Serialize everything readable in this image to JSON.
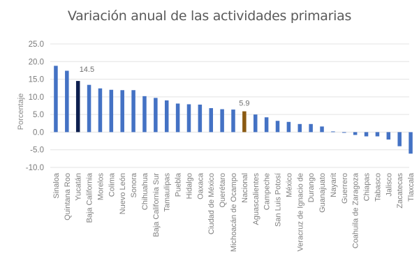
{
  "chart_data": {
    "type": "bar",
    "title": "Variación anual de las actividades primarias",
    "xlabel": "",
    "ylabel": "Porcentaje",
    "ylim": [
      -10.0,
      25.0
    ],
    "yticks": [
      "25.0",
      "20.0",
      "15.0",
      "10.0",
      "5.0",
      "0.0",
      "-5.0",
      "-10.0"
    ],
    "ytick_values": [
      25,
      20,
      15,
      10,
      5,
      0,
      -5,
      -10
    ],
    "grid": true,
    "categories": [
      "Sinaloa",
      "Quintana Roo",
      "Yucatán",
      "Baja California",
      "Morelos",
      "Colima",
      "Nuevo León",
      "Sonora",
      "Chihuahua",
      "Baja California Sur",
      "Tamaulipas",
      "Puebla",
      "Hidalgo",
      "Oaxaca",
      "Ciudad de México",
      "Querétaro",
      "Michoacán de Ocampo",
      "Nacional",
      "Aguascalientes",
      "Campeche",
      "San Luis Potosí",
      "México",
      "Veracruz de Ignacio de",
      "Durango",
      "Guanajuato",
      "Nayarit",
      "Guerrero",
      "Coahuila de Zaragoza",
      "Chiapas",
      "Tabasco",
      "Jalisco",
      "Zacatecas",
      "Tlaxcala"
    ],
    "values": [
      18.8,
      17.4,
      14.5,
      13.4,
      12.4,
      12.0,
      11.9,
      11.9,
      10.2,
      9.7,
      9.0,
      8.1,
      7.9,
      7.8,
      6.8,
      6.5,
      6.4,
      5.9,
      5.0,
      4.2,
      3.2,
      2.9,
      2.3,
      2.3,
      1.6,
      0.2,
      -0.2,
      -0.8,
      -1.2,
      -1.2,
      -2.1,
      -4.0,
      -6.1
    ],
    "data_labels": [
      {
        "category": "Yucatán",
        "text": "14.5"
      },
      {
        "category": "Nacional",
        "text": "5.9"
      }
    ],
    "colors": {
      "default": "#4472c4",
      "highlight_yucatan": "#0d1f4f",
      "highlight_nacional": "#8a5a12",
      "grid": "#e3e3e3"
    },
    "legend": "none"
  }
}
